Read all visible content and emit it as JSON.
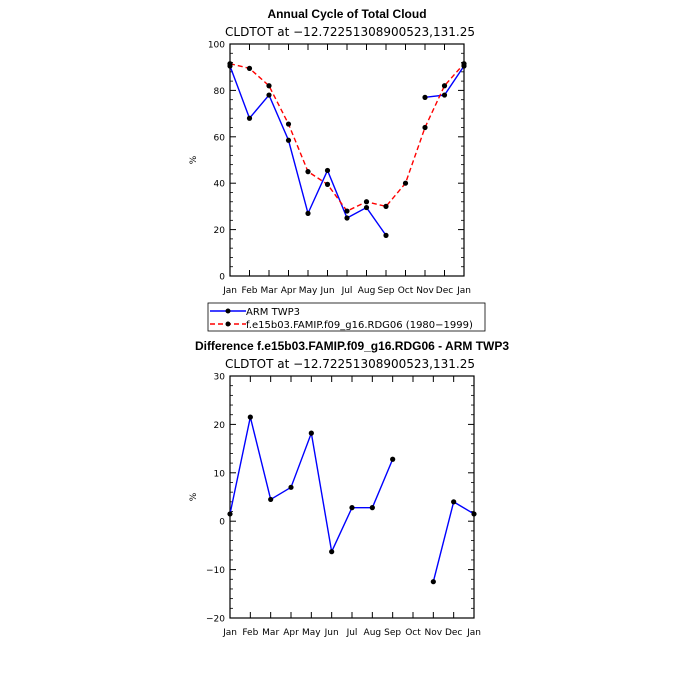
{
  "colors": {
    "obs": "#0000ff",
    "model": "#ff0000",
    "diff": "#0000ff",
    "axis": "#000000"
  },
  "chart_data": [
    {
      "type": "line",
      "title": "Annual Cycle of Total Cloud",
      "subtitle": "CLDTOT at −12.72251308900523,131.25",
      "xlabel": "",
      "ylabel": "%",
      "categories": [
        "Jan",
        "Feb",
        "Mar",
        "Apr",
        "May",
        "Jun",
        "Jul",
        "Aug",
        "Sep",
        "Oct",
        "Nov",
        "Dec",
        "Jan"
      ],
      "ylim": [
        0,
        100
      ],
      "yticks": [
        "0",
        "20",
        "40",
        "60",
        "80",
        "100"
      ],
      "series": [
        {
          "name": "ARM TWP3",
          "style": "solid",
          "values": [
            90.5,
            68,
            78,
            58.5,
            27,
            45.5,
            25,
            29.5,
            17.5,
            null,
            77,
            78,
            90.5
          ]
        },
        {
          "name": "f.e15b03.FAMIP.f09_g16.RDG06 (1980−1999)",
          "style": "dashed",
          "values": [
            91.5,
            89.5,
            82,
            65.5,
            45,
            39.5,
            28,
            32,
            30,
            40,
            64,
            82,
            91.5
          ]
        }
      ],
      "legend": [
        "ARM TWP3",
        "f.e15b03.FAMIP.f09_g16.RDG06 (1980−1999)"
      ],
      "legend_position": "bottom-left"
    },
    {
      "type": "line",
      "title": "Difference f.e15b03.FAMIP.f09_g16.RDG06 - ARM TWP3",
      "subtitle": "CLDTOT at −12.72251308900523,131.25",
      "xlabel": "",
      "ylabel": "%",
      "categories": [
        "Jan",
        "Feb",
        "Mar",
        "Apr",
        "May",
        "Jun",
        "Jul",
        "Aug",
        "Sep",
        "Oct",
        "Nov",
        "Dec",
        "Jan"
      ],
      "ylim": [
        -20,
        30
      ],
      "yticks": [
        "−20",
        "−10",
        "0",
        "10",
        "20",
        "30"
      ],
      "series": [
        {
          "name": "Difference",
          "style": "solid",
          "values": [
            1.5,
            21.5,
            4.5,
            7,
            18.2,
            -6.3,
            2.8,
            2.8,
            12.8,
            null,
            -12.5,
            4,
            1.5
          ]
        }
      ]
    }
  ]
}
